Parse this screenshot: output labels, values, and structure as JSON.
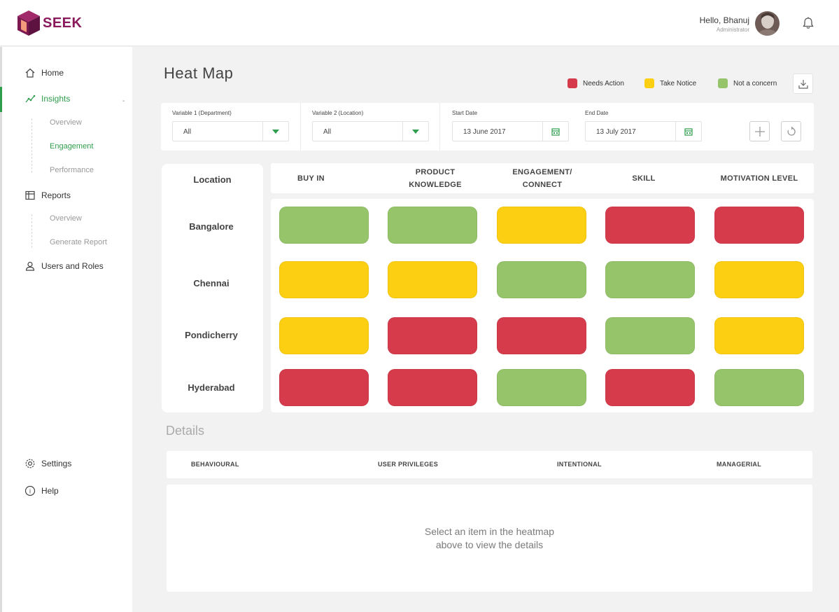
{
  "header": {
    "brand": "SEEK",
    "greeting": "Hello, Bhanuj",
    "role": "Administrator",
    "brand_color": "#8a1a5b"
  },
  "sidebar": {
    "items": [
      {
        "label": "Home",
        "icon": "home-icon"
      },
      {
        "label": "Insights",
        "icon": "insights-icon"
      },
      {
        "label": "Reports",
        "icon": "reports-icon"
      },
      {
        "label": "Users and Roles",
        "icon": "user-icon"
      },
      {
        "label": "Settings",
        "icon": "gear-icon"
      },
      {
        "label": "Help",
        "icon": "help-icon"
      }
    ],
    "insights_sub": [
      "Overview",
      "Engagement",
      "Performance"
    ],
    "reports_sub": [
      "Overview",
      "Generate Report"
    ],
    "active_color": "#2e9d4c"
  },
  "page": {
    "title": "Heat Map"
  },
  "legend": [
    {
      "label": "Needs Action",
      "color": "#d63b4b"
    },
    {
      "label": "Take Notice",
      "color": "#fccf12"
    },
    {
      "label": "Not a concern",
      "color": "#96c46a"
    }
  ],
  "filters": {
    "var1_label": "Variable 1 (Department)",
    "var1_value": "All",
    "var2_label": "Variable 2 (Location)",
    "var2_value": "All",
    "start_label": "Start Date",
    "start_value": "13 June 2017",
    "end_label": "End Date",
    "end_value": "13 July 2017"
  },
  "heatmap": {
    "row_header": "Location",
    "columns": [
      "BUY IN",
      "PRODUCT KNOWLEDGE",
      "ENGAGEMENT/ CONNECT",
      "SKILL",
      "MOTIVATION LEVEL"
    ],
    "rows": [
      {
        "name": "Bangalore",
        "cells": [
          "green",
          "green",
          "yellow",
          "red",
          "red"
        ]
      },
      {
        "name": "Chennai",
        "cells": [
          "yellow",
          "yellow",
          "green",
          "green",
          "yellow"
        ]
      },
      {
        "name": "Pondicherry",
        "cells": [
          "yellow",
          "red",
          "red",
          "green",
          "yellow"
        ]
      },
      {
        "name": "Hyderabad",
        "cells": [
          "red",
          "red",
          "green",
          "red",
          "green"
        ]
      }
    ],
    "colors": {
      "red": "#d63b4b",
      "yellow": "#fccf12",
      "green": "#96c46a"
    }
  },
  "details": {
    "title": "Details",
    "columns": [
      "BEHAVIOURAL",
      "USER PRIVILEGES",
      "INTENTIONAL",
      "MANAGERIAL"
    ],
    "empty_line1": "Select an item in the heatmap",
    "empty_line2": "above to view the details"
  }
}
